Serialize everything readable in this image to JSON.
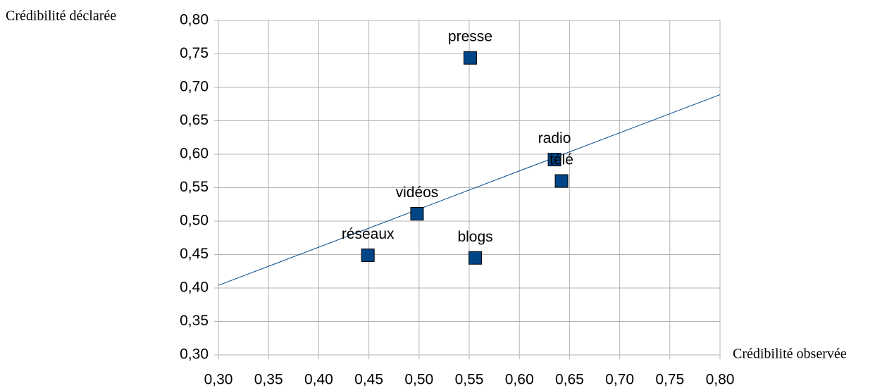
{
  "chart_data": {
    "type": "scatter",
    "y_label": "Crédibilité déclarée",
    "x_label": "Crédibilité observée",
    "labels": [
      "presse",
      "radio",
      "télé",
      "vidéos",
      "réseaux",
      "blogs"
    ],
    "x": [
      0.551,
      0.635,
      0.642,
      0.498,
      0.449,
      0.556
    ],
    "values": [
      0.744,
      0.592,
      0.56,
      0.511,
      0.449,
      0.445
    ],
    "color": "#004586",
    "trendline": {
      "x": [
        0.3,
        0.8
      ],
      "y": [
        0.404,
        0.689
      ],
      "color": "#004586"
    },
    "xlim": [
      0.3,
      0.8
    ],
    "xticks": [
      {
        "value": 0.3,
        "label": "0,30"
      },
      {
        "value": 0.35,
        "label": "0,35"
      },
      {
        "value": 0.4,
        "label": "0,40"
      },
      {
        "value": 0.45,
        "label": "0,45"
      },
      {
        "value": 0.5,
        "label": "0,50"
      },
      {
        "value": 0.55,
        "label": "0,55"
      },
      {
        "value": 0.6,
        "label": "0,60"
      },
      {
        "value": 0.65,
        "label": "0,65"
      },
      {
        "value": 0.7,
        "label": "0,70"
      },
      {
        "value": 0.75,
        "label": "0,75"
      },
      {
        "value": 0.8,
        "label": "0,80"
      }
    ],
    "ylim": [
      0.3,
      0.8
    ],
    "yticks": [
      {
        "value": 0.3,
        "label": "0,30"
      },
      {
        "value": 0.35,
        "label": "0,35"
      },
      {
        "value": 0.4,
        "label": "0,40"
      },
      {
        "value": 0.45,
        "label": "0,45"
      },
      {
        "value": 0.5,
        "label": "0,50"
      },
      {
        "value": 0.55,
        "label": "0,55"
      },
      {
        "value": 0.6,
        "label": "0,60"
      },
      {
        "value": 0.65,
        "label": "0,65"
      },
      {
        "value": 0.7,
        "label": "0,70"
      },
      {
        "value": 0.75,
        "label": "0,75"
      },
      {
        "value": 0.8,
        "label": "0,80"
      }
    ],
    "grid": true
  }
}
